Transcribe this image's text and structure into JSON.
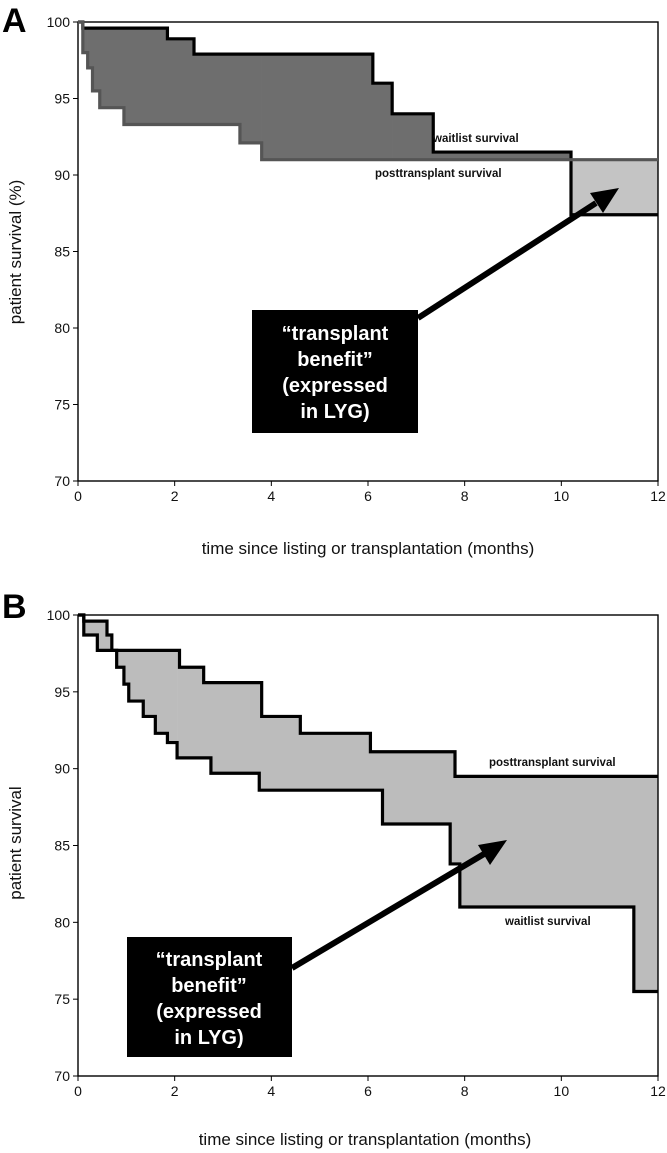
{
  "chart_data": [
    {
      "panel": "A",
      "type": "line",
      "ylabel": "patient survival (%)",
      "xlabel": "time since listing or transplantation (months)",
      "xlim": [
        0,
        12
      ],
      "ylim": [
        70,
        100
      ],
      "xticks": [
        "0",
        "2",
        "4",
        "6",
        "8",
        "10",
        "12"
      ],
      "yticks": [
        "100",
        "95",
        "90",
        "85",
        "80",
        "75",
        "70"
      ],
      "series": [
        {
          "name": "waitlist survival",
          "points": [
            [
              0,
              100
            ],
            [
              0.1,
              100
            ],
            [
              0.1,
              99.6
            ],
            [
              1.85,
              99.6
            ],
            [
              1.85,
              98.9
            ],
            [
              2.4,
              98.9
            ],
            [
              2.4,
              97.9
            ],
            [
              6.1,
              97.9
            ],
            [
              6.1,
              96.0
            ],
            [
              6.5,
              96.0
            ],
            [
              6.5,
              94.0
            ],
            [
              7.35,
              94.0
            ],
            [
              7.35,
              91.5
            ],
            [
              10.2,
              91.5
            ],
            [
              10.2,
              87.4
            ],
            [
              12,
              87.4
            ]
          ]
        },
        {
          "name": "posttransplant survival",
          "points": [
            [
              0,
              100
            ],
            [
              0.1,
              100
            ],
            [
              0.1,
              98.0
            ],
            [
              0.2,
              98.0
            ],
            [
              0.2,
              97.0
            ],
            [
              0.3,
              97.0
            ],
            [
              0.3,
              95.5
            ],
            [
              0.45,
              95.5
            ],
            [
              0.45,
              94.4
            ],
            [
              0.95,
              94.4
            ],
            [
              0.95,
              93.3
            ],
            [
              3.35,
              93.3
            ],
            [
              3.35,
              92.1
            ],
            [
              3.8,
              92.1
            ],
            [
              3.8,
              91.0
            ],
            [
              12,
              91.0
            ]
          ]
        }
      ],
      "annotation": [
        "“transplant",
        "benefit”",
        "(expressed",
        "in LYG)"
      ],
      "colors": {
        "dark_fill": "#6e6e6e",
        "light_fill": "#c4c4c4",
        "line": "#000000",
        "posttransplant_line": "#555555"
      }
    },
    {
      "panel": "B",
      "type": "line",
      "ylabel": "patient survival",
      "xlabel": "time since listing or transplantation (months)",
      "xlim": [
        0,
        12
      ],
      "ylim": [
        70,
        100
      ],
      "xticks": [
        "0",
        "2",
        "4",
        "6",
        "8",
        "10",
        "12"
      ],
      "yticks": [
        "100",
        "95",
        "90",
        "85",
        "80",
        "75",
        "70"
      ],
      "series": [
        {
          "name": "posttransplant survival",
          "points": [
            [
              0,
              100
            ],
            [
              0.12,
              100
            ],
            [
              0.12,
              99.6
            ],
            [
              0.6,
              99.6
            ],
            [
              0.6,
              98.7
            ],
            [
              0.7,
              98.7
            ],
            [
              0.7,
              97.7
            ],
            [
              2.1,
              97.7
            ],
            [
              2.1,
              96.6
            ],
            [
              2.6,
              96.6
            ],
            [
              2.6,
              95.6
            ],
            [
              3.8,
              95.6
            ],
            [
              3.8,
              93.4
            ],
            [
              4.6,
              93.4
            ],
            [
              4.6,
              92.3
            ],
            [
              6.05,
              92.3
            ],
            [
              6.05,
              91.1
            ],
            [
              7.8,
              91.1
            ],
            [
              7.8,
              89.5
            ],
            [
              12,
              89.5
            ]
          ]
        },
        {
          "name": "waitlist survival",
          "points": [
            [
              0,
              100
            ],
            [
              0.12,
              100
            ],
            [
              0.12,
              98.7
            ],
            [
              0.4,
              98.7
            ],
            [
              0.4,
              97.7
            ],
            [
              0.8,
              97.7
            ],
            [
              0.8,
              96.6
            ],
            [
              0.95,
              96.6
            ],
            [
              0.95,
              95.5
            ],
            [
              1.05,
              95.5
            ],
            [
              1.05,
              94.4
            ],
            [
              1.35,
              94.4
            ],
            [
              1.35,
              93.4
            ],
            [
              1.6,
              93.4
            ],
            [
              1.6,
              92.3
            ],
            [
              1.85,
              92.3
            ],
            [
              1.85,
              91.7
            ],
            [
              2.05,
              91.7
            ],
            [
              2.05,
              90.7
            ],
            [
              2.75,
              90.7
            ],
            [
              2.75,
              89.7
            ],
            [
              3.75,
              89.7
            ],
            [
              3.75,
              88.6
            ],
            [
              6.3,
              88.6
            ],
            [
              6.3,
              86.4
            ],
            [
              7.7,
              86.4
            ],
            [
              7.7,
              83.8
            ],
            [
              7.9,
              83.8
            ],
            [
              7.9,
              81.0
            ],
            [
              11.5,
              81.0
            ],
            [
              11.5,
              75.5
            ],
            [
              12,
              75.5
            ]
          ]
        }
      ],
      "annotation": [
        "“transplant",
        "benefit”",
        "(expressed",
        "in LYG)"
      ],
      "colors": {
        "dark_fill": "#6e6e6e",
        "light_fill": "#bcbcbc",
        "line": "#000000"
      }
    }
  ]
}
